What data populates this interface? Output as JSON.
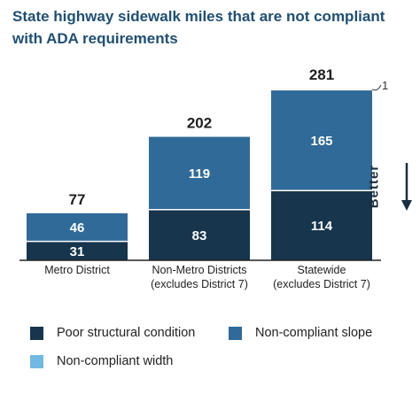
{
  "title_line1": "State highway sidewalk miles that are not compliant",
  "title_line2": "with ADA requirements",
  "better_label": "Better",
  "colors": {
    "title": "#1f4f74",
    "poor_structural": "#17354d",
    "non_compliant_slope": "#2f6a99",
    "non_compliant_width": "#70b9e3",
    "text": "#222222"
  },
  "chart_data": {
    "type": "bar",
    "stacked": true,
    "title": "State highway sidewalk miles that are not compliant with ADA requirements",
    "categories": [
      [
        "Metro District"
      ],
      [
        "Non-Metro Districts",
        "(excludes District 7)"
      ],
      [
        "Statewide",
        "(excludes District 7)"
      ]
    ],
    "series": [
      {
        "name": "Poor structural condition",
        "values": [
          31,
          83,
          114
        ],
        "color": "#17354d"
      },
      {
        "name": "Non-compliant slope",
        "values": [
          46,
          119,
          165
        ],
        "color": "#2f6a99"
      },
      {
        "name": "Non-compliant width",
        "values": [
          0,
          0,
          1
        ],
        "color": "#70b9e3"
      }
    ],
    "totals": [
      77,
      202,
      281
    ],
    "annotations": [
      "1"
    ],
    "ylim": [
      0,
      281
    ],
    "grid": false,
    "legend": "bottom"
  }
}
